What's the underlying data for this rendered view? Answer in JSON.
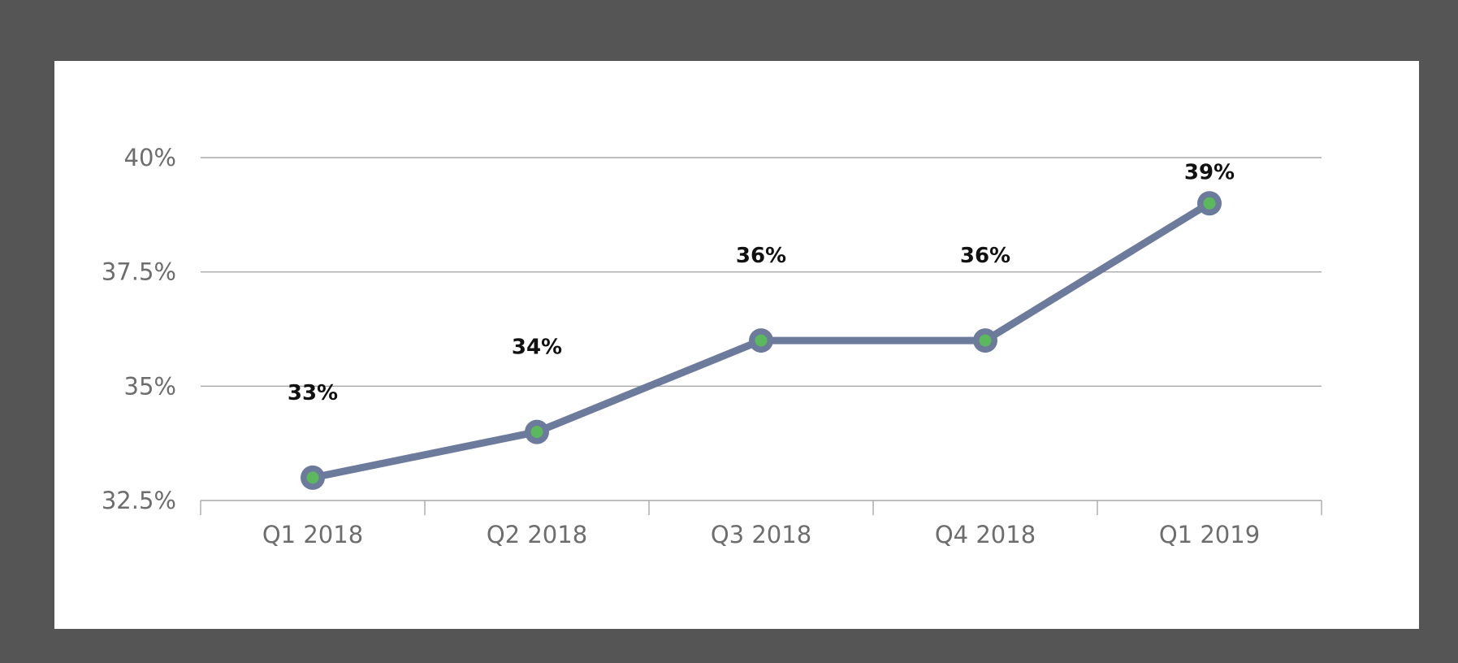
{
  "chart_data": {
    "type": "line",
    "title": "",
    "xlabel": "",
    "ylabel": "",
    "categories": [
      "Q1 2018",
      "Q2 2018",
      "Q3 2018",
      "Q4 2018",
      "Q1 2019"
    ],
    "series": [
      {
        "name": "Share",
        "values": [
          33,
          34,
          36,
          36,
          39
        ],
        "data_labels": [
          "33%",
          "34%",
          "36%",
          "36%",
          "39%"
        ]
      }
    ],
    "ylim": [
      32.5,
      40
    ],
    "y_ticks": [
      32.5,
      35,
      37.5,
      40
    ],
    "y_tick_labels": [
      "32.5%",
      "35%",
      "37.5%",
      "40%"
    ],
    "grid": true,
    "legend": "none",
    "colors": {
      "line": "#6c7a9c",
      "marker_fill": "#5cb85c",
      "marker_stroke": "#6c7a9c"
    }
  }
}
